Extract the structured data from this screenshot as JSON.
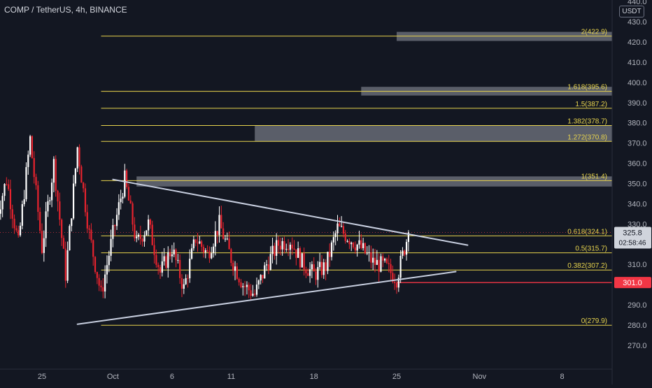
{
  "header": {
    "title": "COMP / TetherUS, 4h, BINANCE",
    "currency": "USDT"
  },
  "colors": {
    "background": "#131722",
    "up": "#ffffff",
    "down": "#e8232e",
    "fib_line": "#e8d44d",
    "fib_label": "#e8d44d",
    "trendline": "#c8cfe0",
    "zone": "#868a94",
    "support": "#f23645",
    "price_tag": "#d0d4dc"
  },
  "chart_data": {
    "type": "candlestick",
    "title": "COMP / TetherUS, 4h, BINANCE",
    "y_unit": "USDT",
    "ylim": [
      263,
      442
    ],
    "y_ticks": [
      270,
      280,
      290,
      300,
      310,
      320,
      330,
      340,
      350,
      360,
      370,
      380,
      390,
      400,
      410,
      420,
      430,
      440
    ],
    "x_ticks": [
      {
        "label": "25",
        "date": "2021-09-25"
      },
      {
        "label": "Oct",
        "date": "2021-10-01"
      },
      {
        "label": "6",
        "date": "2021-10-06"
      },
      {
        "label": "11",
        "date": "2021-10-11"
      },
      {
        "label": "18",
        "date": "2021-10-18"
      },
      {
        "label": "25",
        "date": "2021-10-25"
      },
      {
        "label": "Nov",
        "date": "2021-11-01"
      },
      {
        "label": "8",
        "date": "2021-11-08"
      }
    ],
    "current_price": {
      "value": 325.8,
      "label": "325.8",
      "countdown": "02:58:46"
    },
    "support_level": {
      "value": 301.0,
      "label": "301.0"
    },
    "fib_levels": [
      {
        "ratio": "0",
        "value": 279.9,
        "label": "0(279.9)",
        "start": "2021-09-30"
      },
      {
        "ratio": "0.382",
        "value": 307.2,
        "label": "0.382(307.2)",
        "start": "2021-09-30"
      },
      {
        "ratio": "0.5",
        "value": 315.7,
        "label": "0.5(315.7)",
        "start": "2021-09-30"
      },
      {
        "ratio": "0.618",
        "value": 324.1,
        "label": "0.618(324.1)",
        "start": "2021-09-30"
      },
      {
        "ratio": "1",
        "value": 351.4,
        "label": "1(351.4)",
        "start": "2021-09-30"
      },
      {
        "ratio": "1.272",
        "value": 370.8,
        "label": "1.272(370.8)",
        "start": "2021-09-30"
      },
      {
        "ratio": "1.382",
        "value": 378.7,
        "label": "1.382(378.7)",
        "start": "2021-09-30"
      },
      {
        "ratio": "1.5",
        "value": 387.2,
        "label": "1.5(387.2)",
        "start": "2021-09-30"
      },
      {
        "ratio": "1.618",
        "value": 395.6,
        "label": "1.618(395.6)",
        "start": "2021-09-30"
      },
      {
        "ratio": "2",
        "value": 422.9,
        "label": "2(422.9)",
        "start": "2021-09-30"
      }
    ],
    "zones": [
      {
        "from": "2021-10-03",
        "low": 348.5,
        "high": 353.5
      },
      {
        "from": "2021-10-13",
        "low": 370.8,
        "high": 378.7
      },
      {
        "from": "2021-10-22",
        "low": 393.5,
        "high": 397.8
      },
      {
        "from": "2021-10-25",
        "low": 420.5,
        "high": 425.0
      }
    ],
    "trendlines": [
      {
        "name": "upper",
        "start": {
          "date": "2021-10-01",
          "value": 352.0
        },
        "end": {
          "date": "2021-10-31",
          "value": 319.5
        }
      },
      {
        "name": "lower",
        "start": {
          "date": "2021-09-28",
          "value": 280.4
        },
        "end": {
          "date": "2021-10-30",
          "value": 306.4
        }
      }
    ],
    "candle_path": [
      [
        "2021-09-21",
        330
      ],
      [
        "2021-09-22",
        352
      ],
      [
        "2021-09-23",
        320
      ],
      [
        "2021-09-24",
        372
      ],
      [
        "2021-09-25",
        318
      ],
      [
        "2021-09-26",
        360
      ],
      [
        "2021-09-27",
        305
      ],
      [
        "2021-09-28",
        368
      ],
      [
        "2021-09-29",
        325
      ],
      [
        "2021-09-30",
        295
      ],
      [
        "2021-10-01",
        325
      ],
      [
        "2021-10-02",
        352
      ],
      [
        "2021-10-03",
        320
      ],
      [
        "2021-10-04",
        330
      ],
      [
        "2021-10-05",
        306
      ],
      [
        "2021-10-06",
        318
      ],
      [
        "2021-10-07",
        298
      ],
      [
        "2021-10-08",
        323
      ],
      [
        "2021-10-09",
        315
      ],
      [
        "2021-10-10",
        330
      ],
      [
        "2021-10-11",
        313
      ],
      [
        "2021-10-12",
        300
      ],
      [
        "2021-10-13",
        295
      ],
      [
        "2021-10-14",
        310
      ],
      [
        "2021-10-15",
        320
      ],
      [
        "2021-10-16",
        322
      ],
      [
        "2021-10-17",
        311
      ],
      [
        "2021-10-18",
        305
      ],
      [
        "2021-10-19",
        309
      ],
      [
        "2021-10-20",
        328
      ],
      [
        "2021-10-21",
        323
      ],
      [
        "2021-10-22",
        318
      ],
      [
        "2021-10-23",
        311
      ],
      [
        "2021-10-24",
        309
      ],
      [
        "2021-10-25",
        303
      ],
      [
        "2021-10-26",
        325.8
      ]
    ]
  }
}
